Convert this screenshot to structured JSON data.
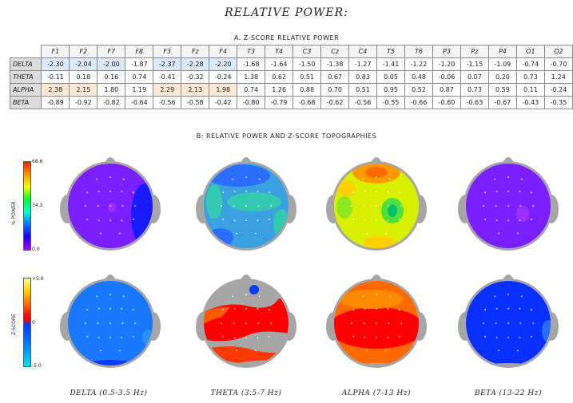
{
  "title": "RELATIVE POWER:",
  "section_a": "A. Z-SCORE RELATIVE POWER",
  "section_b": "B: RELATIVE POWER AND Z-SCORE TOPOGRAPHIES",
  "colorbar_power": {
    "axis_label": "% POWER",
    "max_label": "68.6",
    "mid_label": "34.3",
    "min_label": "0.0"
  },
  "colorbar_z": {
    "axis_label": "Z-SCORE",
    "max_label": "+5.0",
    "mid_label": "0",
    "min_label": "-5.0"
  },
  "band_labels": [
    "DELTA (0.5-3.5 Hz)",
    "THETA (3.5-7 Hz)",
    "ALPHA (7-13 Hz)",
    "BETA (13-22 Hz)"
  ],
  "colors": {
    "neg_highlight": "#dbeaf9",
    "pos_highlight": "#fbe8d5",
    "head_gray": "#a6a6a6"
  },
  "chart_data": [
    {
      "type": "table",
      "title": "A. Z-SCORE RELATIVE POWER",
      "columns": [
        "F1",
        "F2",
        "F7",
        "F8",
        "F3",
        "Fz",
        "F4",
        "T3",
        "T4",
        "C3",
        "Cz",
        "C4",
        "T5",
        "T6",
        "P3",
        "Pz",
        "P4",
        "O1",
        "O2"
      ],
      "rows": [
        {
          "label": "DELTA",
          "values": [
            "-2.30",
            "-2.04",
            "-2.00",
            "-1.87",
            "-2.37",
            "-2.28",
            "-2.20",
            "-1.68",
            "-1.64",
            "-1.50",
            "-1.38",
            "-1.27",
            "-1.41",
            "-1.22",
            "-1.20",
            "-1.15",
            "-1.09",
            "-0.74",
            "-0.70"
          ]
        },
        {
          "label": "THETA",
          "values": [
            "-0.11",
            "0.18",
            "0.16",
            "0.74",
            "-0.41",
            "-0.32",
            "-0.24",
            "1.38",
            "0.62",
            "0.51",
            "0.67",
            "0.83",
            "0.05",
            "0.48",
            "-0.06",
            "0.07",
            "0.20",
            "0.73",
            "1.24"
          ]
        },
        {
          "label": "ALPHA",
          "values": [
            "2.38",
            "2.15",
            "1.80",
            "1.19",
            "2.29",
            "2.13",
            "1.98",
            "0.74",
            "1.26",
            "0.88",
            "0.70",
            "0.51",
            "0.95",
            "0.52",
            "0.87",
            "0.73",
            "0.59",
            "0.11",
            "-0.24"
          ]
        },
        {
          "label": "BETA",
          "values": [
            "-0.89",
            "-0.92",
            "-0.82",
            "-0.64",
            "-0.56",
            "-0.58",
            "-0.42",
            "-0.80",
            "-0.79",
            "-0.68",
            "-0.62",
            "-0.56",
            "-0.55",
            "-0.66",
            "-0.60",
            "-0.63",
            "-0.67",
            "-0.43",
            "-0.35"
          ]
        }
      ],
      "highlight_rule": "cells with |z| >= 1.96 shaded"
    },
    {
      "type": "heatmap",
      "title": "B: RELATIVE POWER AND Z-SCORE TOPOGRAPHIES",
      "rows": [
        "% POWER",
        "Z-SCORE"
      ],
      "bands": [
        "DELTA (0.5-3.5 Hz)",
        "THETA (3.5-7 Hz)",
        "ALPHA (7-13 Hz)",
        "BETA (13-22 Hz)"
      ],
      "power_range": [
        0.0,
        68.6
      ],
      "z_range": [
        -5.0,
        5.0
      ]
    }
  ]
}
